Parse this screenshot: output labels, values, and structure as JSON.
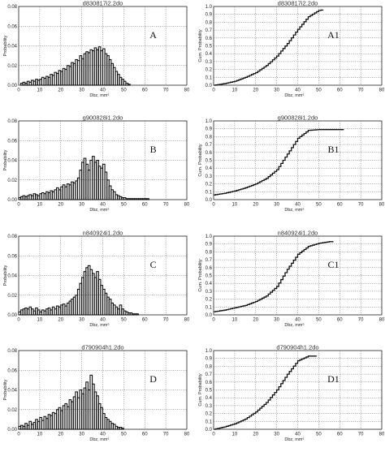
{
  "chart_data": [
    {
      "id": "A",
      "type": "histogram",
      "title": "d830817i2.2do",
      "panel_label": "A",
      "xlabel": "Dbz, mm⁶",
      "ylabel": "Probability",
      "xlim": [
        0,
        80
      ],
      "ylim": [
        0,
        0.08
      ],
      "xticks": [
        "0",
        "10",
        "20",
        "30",
        "40",
        "50",
        "60",
        "70",
        "80"
      ],
      "yticks": [
        "0.00",
        "0.02",
        "0.04",
        "0.06",
        "0.08"
      ],
      "grid": true,
      "bin_width": 1,
      "x": [
        0,
        1,
        2,
        3,
        4,
        5,
        6,
        7,
        8,
        9,
        10,
        11,
        12,
        13,
        14,
        15,
        16,
        17,
        18,
        19,
        20,
        21,
        22,
        23,
        24,
        25,
        26,
        27,
        28,
        29,
        30,
        31,
        32,
        33,
        34,
        35,
        36,
        37,
        38,
        39,
        40,
        41,
        42,
        43,
        44,
        45,
        46,
        47,
        48,
        49,
        50,
        51,
        52
      ],
      "values": [
        0.0,
        0.002,
        0.003,
        0.002,
        0.004,
        0.003,
        0.005,
        0.004,
        0.006,
        0.005,
        0.006,
        0.008,
        0.007,
        0.009,
        0.008,
        0.011,
        0.01,
        0.013,
        0.012,
        0.015,
        0.014,
        0.017,
        0.016,
        0.02,
        0.019,
        0.023,
        0.022,
        0.026,
        0.025,
        0.03,
        0.027,
        0.032,
        0.034,
        0.033,
        0.036,
        0.035,
        0.038,
        0.036,
        0.039,
        0.035,
        0.037,
        0.032,
        0.03,
        0.026,
        0.022,
        0.018,
        0.014,
        0.011,
        0.008,
        0.006,
        0.004,
        0.002,
        0.001
      ]
    },
    {
      "id": "A1",
      "type": "line",
      "title": "d830817i2.2do",
      "panel_label": "A1",
      "xlabel": "Dbz, mm⁶",
      "ylabel": "Cum. Probability",
      "xlim": [
        0,
        80
      ],
      "ylim": [
        0,
        1.0
      ],
      "xticks": [
        "0",
        "10",
        "20",
        "30",
        "40",
        "50",
        "60",
        "70",
        "80"
      ],
      "yticks": [
        "0.0",
        "0.1",
        "0.2",
        "0.3",
        "0.4",
        "0.5",
        "0.6",
        "0.7",
        "0.8",
        "0.9",
        "1.0"
      ],
      "grid": true,
      "x": [
        0,
        5,
        10,
        15,
        20,
        25,
        30,
        35,
        40,
        45,
        50,
        52
      ],
      "values": [
        0.0,
        0.02,
        0.05,
        0.1,
        0.16,
        0.25,
        0.37,
        0.53,
        0.71,
        0.87,
        0.95,
        0.96
      ]
    },
    {
      "id": "B",
      "type": "histogram",
      "title": "g900828i1.2do",
      "panel_label": "B",
      "xlabel": "Dbz, mm⁶",
      "ylabel": "Probability",
      "xlim": [
        0,
        80
      ],
      "ylim": [
        0,
        0.08
      ],
      "xticks": [
        "0",
        "10",
        "20",
        "30",
        "40",
        "50",
        "60",
        "70",
        "80"
      ],
      "yticks": [
        "0.00",
        "0.02",
        "0.04",
        "0.06",
        "0.08"
      ],
      "grid": true,
      "bin_width": 1,
      "x": [
        0,
        1,
        2,
        3,
        4,
        5,
        6,
        7,
        8,
        9,
        10,
        11,
        12,
        13,
        14,
        15,
        16,
        17,
        18,
        19,
        20,
        21,
        22,
        23,
        24,
        25,
        26,
        27,
        28,
        29,
        30,
        31,
        32,
        33,
        34,
        35,
        36,
        37,
        38,
        39,
        40,
        41,
        42,
        43,
        44,
        45,
        46,
        47,
        48,
        49,
        50,
        51,
        52,
        53,
        54,
        55,
        56,
        57,
        58,
        59,
        60,
        61
      ],
      "values": [
        0.002,
        0.003,
        0.004,
        0.003,
        0.004,
        0.005,
        0.004,
        0.006,
        0.005,
        0.004,
        0.006,
        0.007,
        0.006,
        0.008,
        0.007,
        0.009,
        0.008,
        0.01,
        0.012,
        0.01,
        0.013,
        0.015,
        0.013,
        0.016,
        0.015,
        0.018,
        0.017,
        0.019,
        0.022,
        0.03,
        0.038,
        0.042,
        0.036,
        0.03,
        0.04,
        0.044,
        0.038,
        0.04,
        0.034,
        0.032,
        0.036,
        0.028,
        0.02,
        0.014,
        0.01,
        0.008,
        0.005,
        0.004,
        0.003,
        0.002,
        0.002,
        0.001,
        0.001,
        0.001,
        0.001,
        0.001,
        0.001,
        0.001,
        0.001,
        0.001,
        0.001,
        0.001
      ]
    },
    {
      "id": "B1",
      "type": "line",
      "title": "g900828i1.2do",
      "panel_label": "B1",
      "xlabel": "Dbz, mm⁶",
      "ylabel": "Cum. Probability",
      "xlim": [
        0,
        80
      ],
      "ylim": [
        0,
        1.0
      ],
      "xticks": [
        "0",
        "10",
        "20",
        "30",
        "40",
        "50",
        "60",
        "70",
        "80"
      ],
      "yticks": [
        "0.0",
        "0.1",
        "0.2",
        "0.3",
        "0.4",
        "0.5",
        "0.6",
        "0.7",
        "0.8",
        "0.9",
        "1.0"
      ],
      "grid": true,
      "x": [
        0,
        5,
        10,
        15,
        20,
        25,
        30,
        35,
        40,
        45,
        50,
        55,
        62
      ],
      "values": [
        0.06,
        0.08,
        0.11,
        0.15,
        0.2,
        0.27,
        0.38,
        0.58,
        0.78,
        0.88,
        0.89,
        0.89,
        0.89
      ]
    },
    {
      "id": "C",
      "type": "histogram",
      "title": "n840924i1.2do",
      "panel_label": "C",
      "xlabel": "Dbz, mm⁶",
      "ylabel": "Probability",
      "xlim": [
        0,
        80
      ],
      "ylim": [
        0,
        0.08
      ],
      "xticks": [
        "0",
        "10",
        "20",
        "30",
        "40",
        "50",
        "60",
        "70",
        "80"
      ],
      "yticks": [
        "0.00",
        "0.02",
        "0.04",
        "0.06",
        "0.08"
      ],
      "grid": true,
      "bin_width": 1,
      "x": [
        0,
        1,
        2,
        3,
        4,
        5,
        6,
        7,
        8,
        9,
        10,
        11,
        12,
        13,
        14,
        15,
        16,
        17,
        18,
        19,
        20,
        21,
        22,
        23,
        24,
        25,
        26,
        27,
        28,
        29,
        30,
        31,
        32,
        33,
        34,
        35,
        36,
        37,
        38,
        39,
        40,
        41,
        42,
        43,
        44,
        45,
        46,
        47,
        48,
        49,
        50,
        51,
        52,
        53,
        54,
        55,
        56
      ],
      "values": [
        0.003,
        0.005,
        0.006,
        0.007,
        0.006,
        0.008,
        0.006,
        0.004,
        0.007,
        0.005,
        0.003,
        0.005,
        0.004,
        0.006,
        0.007,
        0.005,
        0.008,
        0.006,
        0.009,
        0.008,
        0.01,
        0.011,
        0.009,
        0.012,
        0.014,
        0.016,
        0.018,
        0.02,
        0.026,
        0.032,
        0.038,
        0.044,
        0.048,
        0.05,
        0.046,
        0.042,
        0.038,
        0.044,
        0.036,
        0.03,
        0.026,
        0.022,
        0.018,
        0.016,
        0.012,
        0.01,
        0.008,
        0.006,
        0.01,
        0.006,
        0.004,
        0.003,
        0.002,
        0.002,
        0.001,
        0.001,
        0.001
      ]
    },
    {
      "id": "C1",
      "type": "line",
      "title": "n840924i1.2do",
      "panel_label": "C1",
      "xlabel": "Dbz, mm⁶",
      "ylabel": "Cum. Probability",
      "xlim": [
        0,
        80
      ],
      "ylim": [
        0,
        1.0
      ],
      "xticks": [
        "0",
        "10",
        "20",
        "30",
        "40",
        "50",
        "60",
        "70",
        "80"
      ],
      "yticks": [
        "0.0",
        "0.1",
        "0.2",
        "0.3",
        "0.4",
        "0.5",
        "0.6",
        "0.7",
        "0.8",
        "0.9",
        "1.0"
      ],
      "grid": true,
      "x": [
        0,
        5,
        10,
        15,
        20,
        25,
        30,
        35,
        40,
        45,
        50,
        55,
        57
      ],
      "values": [
        0.04,
        0.06,
        0.09,
        0.12,
        0.17,
        0.24,
        0.36,
        0.58,
        0.77,
        0.87,
        0.91,
        0.93,
        0.93
      ]
    },
    {
      "id": "D",
      "type": "histogram",
      "title": "d790904h1.2do",
      "panel_label": "D",
      "xlabel": "Dbz, mm⁶",
      "ylabel": "Probability",
      "xlim": [
        0,
        80
      ],
      "ylim": [
        0,
        0.08
      ],
      "xticks": [
        "0",
        "10",
        "20",
        "30",
        "40",
        "50",
        "60",
        "70",
        "80"
      ],
      "yticks": [
        "0.00",
        "0.02",
        "0.04",
        "0.06",
        "0.08"
      ],
      "grid": true,
      "bin_width": 1,
      "x": [
        0,
        1,
        2,
        3,
        4,
        5,
        6,
        7,
        8,
        9,
        10,
        11,
        12,
        13,
        14,
        15,
        16,
        17,
        18,
        19,
        20,
        21,
        22,
        23,
        24,
        25,
        26,
        27,
        28,
        29,
        30,
        31,
        32,
        33,
        34,
        35,
        36,
        37,
        38,
        39,
        40,
        41,
        42,
        43,
        44,
        45,
        46,
        47,
        48,
        49
      ],
      "values": [
        0.003,
        0.004,
        0.003,
        0.006,
        0.004,
        0.008,
        0.005,
        0.007,
        0.01,
        0.008,
        0.012,
        0.009,
        0.013,
        0.011,
        0.015,
        0.014,
        0.017,
        0.016,
        0.02,
        0.022,
        0.019,
        0.024,
        0.026,
        0.023,
        0.03,
        0.028,
        0.033,
        0.038,
        0.032,
        0.04,
        0.036,
        0.042,
        0.048,
        0.04,
        0.055,
        0.046,
        0.038,
        0.034,
        0.026,
        0.022,
        0.016,
        0.012,
        0.01,
        0.008,
        0.006,
        0.005,
        0.003,
        0.002,
        0.002,
        0.001
      ]
    },
    {
      "id": "D1",
      "type": "line",
      "title": "d790904h1.2do",
      "panel_label": "D1",
      "xlabel": "Dbz, mm⁶",
      "ylabel": "Cum. Probability",
      "xlim": [
        0,
        80
      ],
      "ylim": [
        0,
        1.0
      ],
      "xticks": [
        "0",
        "10",
        "20",
        "30",
        "40",
        "50",
        "60",
        "70",
        "80"
      ],
      "yticks": [
        "0.0",
        "0.1",
        "0.2",
        "0.3",
        "0.4",
        "0.5",
        "0.6",
        "0.7",
        "0.8",
        "0.9",
        "1.0"
      ],
      "grid": true,
      "x": [
        0,
        5,
        10,
        15,
        20,
        25,
        30,
        35,
        40,
        45,
        49
      ],
      "values": [
        0.0,
        0.03,
        0.07,
        0.13,
        0.22,
        0.34,
        0.5,
        0.7,
        0.87,
        0.93,
        0.93
      ]
    }
  ]
}
